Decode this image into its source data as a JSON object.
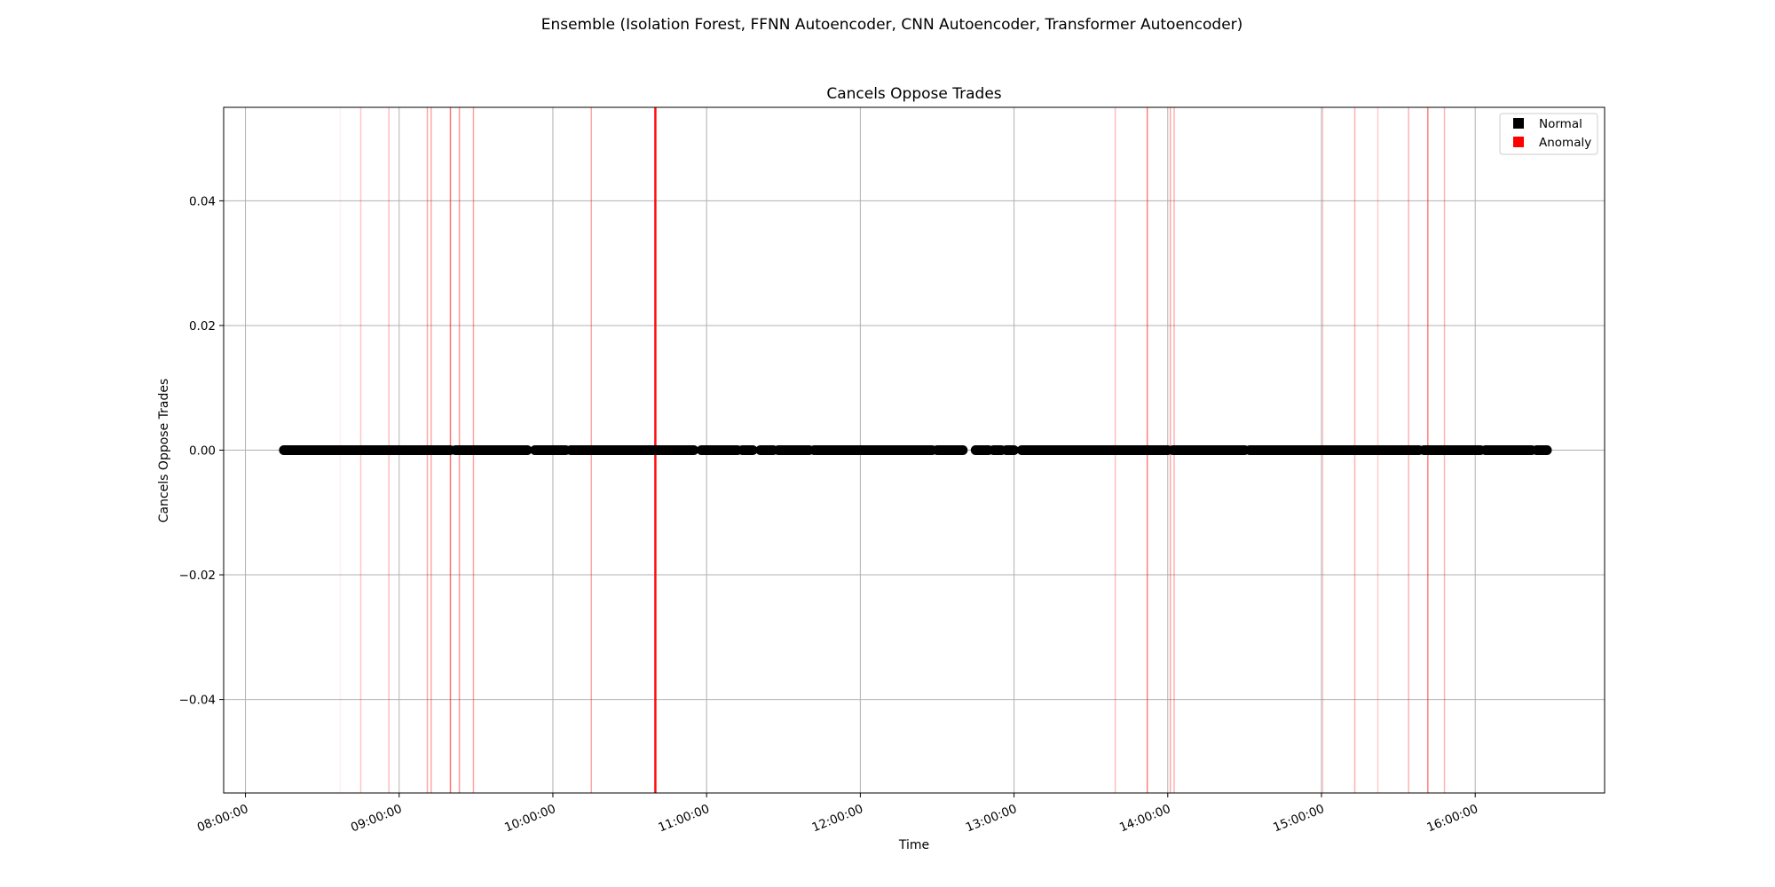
{
  "figure": {
    "suptitle": "Ensemble (Isolation Forest, FFNN Autoencoder, CNN Autoencoder, Transformer Autoencoder)"
  },
  "chart_data": {
    "type": "scatter",
    "title": "Cancels Oppose Trades",
    "xlabel": "Time",
    "ylabel": "Cancels Oppose Trades",
    "xlim": [
      "07:51:30",
      "16:50:30"
    ],
    "ylim": [
      -0.055,
      0.055
    ],
    "x_ticks": [
      "08:00:00",
      "09:00:00",
      "10:00:00",
      "11:00:00",
      "12:00:00",
      "13:00:00",
      "14:00:00",
      "15:00:00",
      "16:00:00"
    ],
    "y_ticks": [
      {
        "value": -0.04,
        "label": "−0.04"
      },
      {
        "value": -0.02,
        "label": "−0.02"
      },
      {
        "value": 0.0,
        "label": "0.00"
      },
      {
        "value": 0.02,
        "label": "0.02"
      },
      {
        "value": 0.04,
        "label": "0.04"
      }
    ],
    "grid": true,
    "legend_position": "top-right",
    "series": [
      {
        "name": "Normal",
        "color": "#000000",
        "y_value": 0.0,
        "segments": [
          [
            "08:15:00",
            "09:20:00"
          ],
          [
            "09:22:00",
            "09:50:00"
          ],
          [
            "09:53:00",
            "10:05:00"
          ],
          [
            "10:07:00",
            "10:55:00"
          ],
          [
            "10:58:00",
            "11:12:00"
          ],
          [
            "11:14:00",
            "11:18:00"
          ],
          [
            "11:21:00",
            "11:26:00"
          ],
          [
            "11:28:00",
            "11:40:00"
          ],
          [
            "11:42:00",
            "12:28:00"
          ],
          [
            "12:30:00",
            "12:40:00"
          ],
          [
            "12:45:00",
            "12:50:00"
          ],
          [
            "12:52:00",
            "12:55:00"
          ],
          [
            "12:57:00",
            "13:00:00"
          ],
          [
            "13:03:00",
            "14:00:00"
          ],
          [
            "14:02:00",
            "14:30:00"
          ],
          [
            "14:32:00",
            "15:38:00"
          ],
          [
            "15:40:00",
            "16:02:00"
          ],
          [
            "16:04:00",
            "16:22:00"
          ],
          [
            "16:24:00",
            "16:28:00"
          ]
        ]
      },
      {
        "name": "Anomaly",
        "color": "#ff0000",
        "markers": [
          {
            "time": "08:37:00",
            "alpha": 0.06
          },
          {
            "time": "08:45:00",
            "alpha": 0.22
          },
          {
            "time": "08:56:00",
            "alpha": 0.25
          },
          {
            "time": "09:11:00",
            "alpha": 0.35
          },
          {
            "time": "09:12:30",
            "alpha": 0.35
          },
          {
            "time": "09:20:00",
            "alpha": 0.55
          },
          {
            "time": "09:23:30",
            "alpha": 0.4
          },
          {
            "time": "09:29:00",
            "alpha": 0.35
          },
          {
            "time": "10:15:00",
            "alpha": 0.35
          },
          {
            "time": "10:40:00",
            "alpha": 0.95
          },
          {
            "time": "13:39:30",
            "alpha": 0.25
          },
          {
            "time": "13:52:00",
            "alpha": 0.5
          },
          {
            "time": "14:01:00",
            "alpha": 0.35
          },
          {
            "time": "14:02:30",
            "alpha": 0.3
          },
          {
            "time": "15:00:30",
            "alpha": 0.2
          },
          {
            "time": "15:13:00",
            "alpha": 0.3
          },
          {
            "time": "15:22:00",
            "alpha": 0.2
          },
          {
            "time": "15:34:00",
            "alpha": 0.3
          },
          {
            "time": "15:41:30",
            "alpha": 0.5
          },
          {
            "time": "15:48:00",
            "alpha": 0.3
          }
        ]
      }
    ]
  }
}
